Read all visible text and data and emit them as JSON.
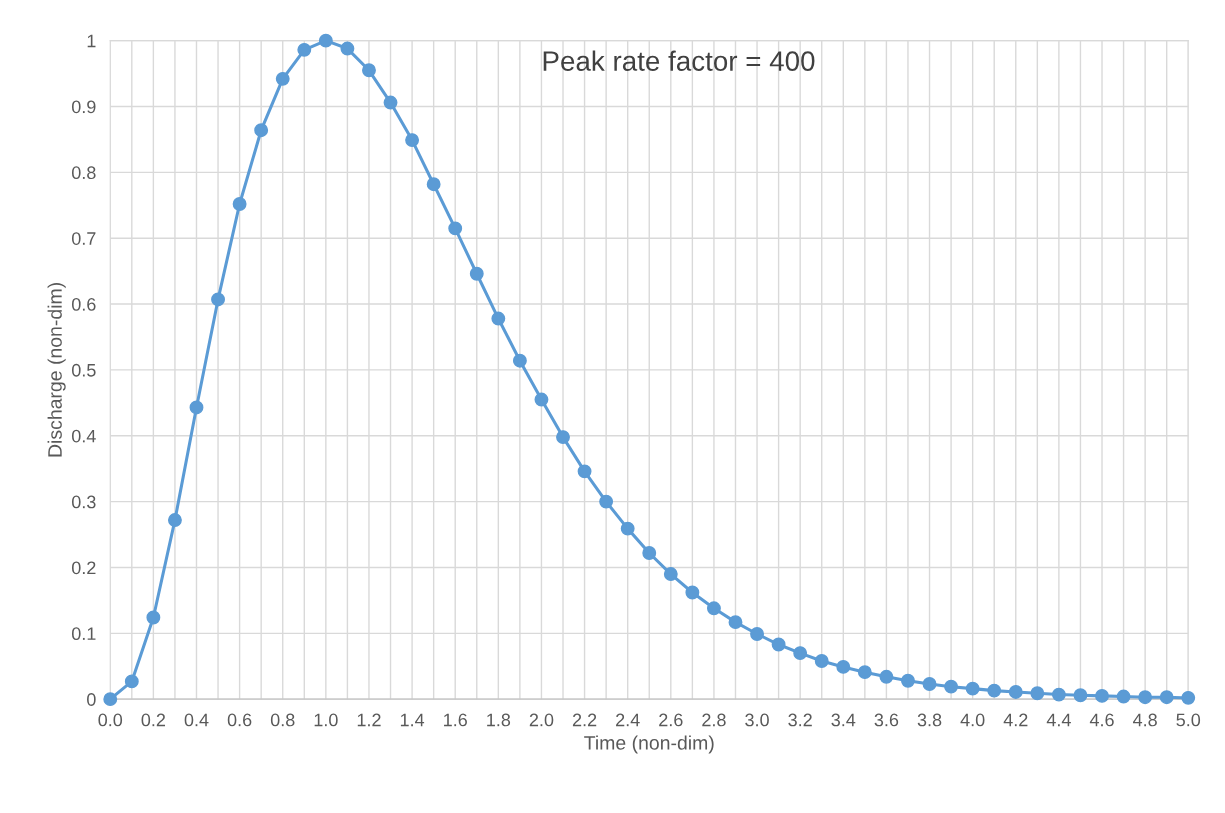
{
  "chart_data": {
    "type": "line",
    "xlabel": "Time (non-dim)",
    "ylabel": "Discharge (non-dim)",
    "annotations": [
      "Peak rate factor = 400"
    ],
    "x": [
      0.0,
      0.1,
      0.2,
      0.3,
      0.4,
      0.5,
      0.6,
      0.7,
      0.8,
      0.9,
      1.0,
      1.1,
      1.2,
      1.3,
      1.4,
      1.5,
      1.6,
      1.7,
      1.8,
      1.9,
      2.0,
      2.1,
      2.2,
      2.3,
      2.4,
      2.5,
      2.6,
      2.7,
      2.8,
      2.9,
      3.0,
      3.1,
      3.2,
      3.3,
      3.4,
      3.5,
      3.6,
      3.7,
      3.8,
      3.9,
      4.0,
      4.1,
      4.2,
      4.3,
      4.4,
      4.5,
      4.6,
      4.7,
      4.8,
      4.9,
      5.0
    ],
    "series": [
      {
        "color": "#5b9bd5",
        "values": [
          0,
          0.027,
          0.124,
          0.272,
          0.443,
          0.607,
          0.752,
          0.864,
          0.942,
          0.986,
          1.0,
          0.988,
          0.955,
          0.906,
          0.849,
          0.782,
          0.715,
          0.646,
          0.578,
          0.514,
          0.455,
          0.398,
          0.346,
          0.3,
          0.259,
          0.222,
          0.19,
          0.162,
          0.138,
          0.117,
          0.099,
          0.083,
          0.07,
          0.058,
          0.049,
          0.041,
          0.034,
          0.028,
          0.023,
          0.019,
          0.016,
          0.013,
          0.011,
          0.009,
          0.007,
          0.006,
          0.005,
          0.004,
          0.003,
          0.003,
          0.002
        ]
      }
    ],
    "xlim": [
      0,
      5
    ],
    "xticks": [
      {
        "value": 0,
        "label": "0.0"
      },
      {
        "value": 0.1,
        "label": null
      },
      {
        "value": 0.2,
        "label": "0.2"
      },
      {
        "value": 0.3,
        "label": null
      },
      {
        "value": 0.4,
        "label": "0.4"
      },
      {
        "value": 0.5,
        "label": null
      },
      {
        "value": 0.6,
        "label": "0.6"
      },
      {
        "value": 0.7,
        "label": null
      },
      {
        "value": 0.8,
        "label": "0.8"
      },
      {
        "value": 0.9,
        "label": null
      },
      {
        "value": 1.0,
        "label": "1.0"
      },
      {
        "value": 1.1,
        "label": null
      },
      {
        "value": 1.2,
        "label": "1.2"
      },
      {
        "value": 1.3,
        "label": null
      },
      {
        "value": 1.4,
        "label": "1.4"
      },
      {
        "value": 1.5,
        "label": null
      },
      {
        "value": 1.6,
        "label": "1.6"
      },
      {
        "value": 1.7,
        "label": null
      },
      {
        "value": 1.8,
        "label": "1.8"
      },
      {
        "value": 1.9,
        "label": null
      },
      {
        "value": 2.0,
        "label": "2.0"
      },
      {
        "value": 2.1,
        "label": null
      },
      {
        "value": 2.2,
        "label": "2.2"
      },
      {
        "value": 2.3,
        "label": null
      },
      {
        "value": 2.4,
        "label": "2.4"
      },
      {
        "value": 2.5,
        "label": null
      },
      {
        "value": 2.6,
        "label": "2.6"
      },
      {
        "value": 2.7,
        "label": null
      },
      {
        "value": 2.8,
        "label": "2.8"
      },
      {
        "value": 2.9,
        "label": null
      },
      {
        "value": 3.0,
        "label": "3.0"
      },
      {
        "value": 3.1,
        "label": null
      },
      {
        "value": 3.2,
        "label": "3.2"
      },
      {
        "value": 3.3,
        "label": null
      },
      {
        "value": 3.4,
        "label": "3.4"
      },
      {
        "value": 3.5,
        "label": null
      },
      {
        "value": 3.6,
        "label": "3.6"
      },
      {
        "value": 3.7,
        "label": null
      },
      {
        "value": 3.8,
        "label": "3.8"
      },
      {
        "value": 3.9,
        "label": null
      },
      {
        "value": 4.0,
        "label": "4.0"
      },
      {
        "value": 4.1,
        "label": null
      },
      {
        "value": 4.2,
        "label": "4.2"
      },
      {
        "value": 4.3,
        "label": null
      },
      {
        "value": 4.4,
        "label": "4.4"
      },
      {
        "value": 4.5,
        "label": null
      },
      {
        "value": 4.6,
        "label": "4.6"
      },
      {
        "value": 4.7,
        "label": null
      },
      {
        "value": 4.8,
        "label": "4.8"
      },
      {
        "value": 4.9,
        "label": null
      },
      {
        "value": 5.0,
        "label": "5.0"
      }
    ],
    "ylim": [
      0,
      1
    ],
    "yticks": [
      0,
      0.1,
      0.2,
      0.3,
      0.4,
      0.5,
      0.6,
      0.7,
      0.8,
      0.9,
      1
    ],
    "grid": true,
    "marker": "circle",
    "line_style": "solid"
  }
}
